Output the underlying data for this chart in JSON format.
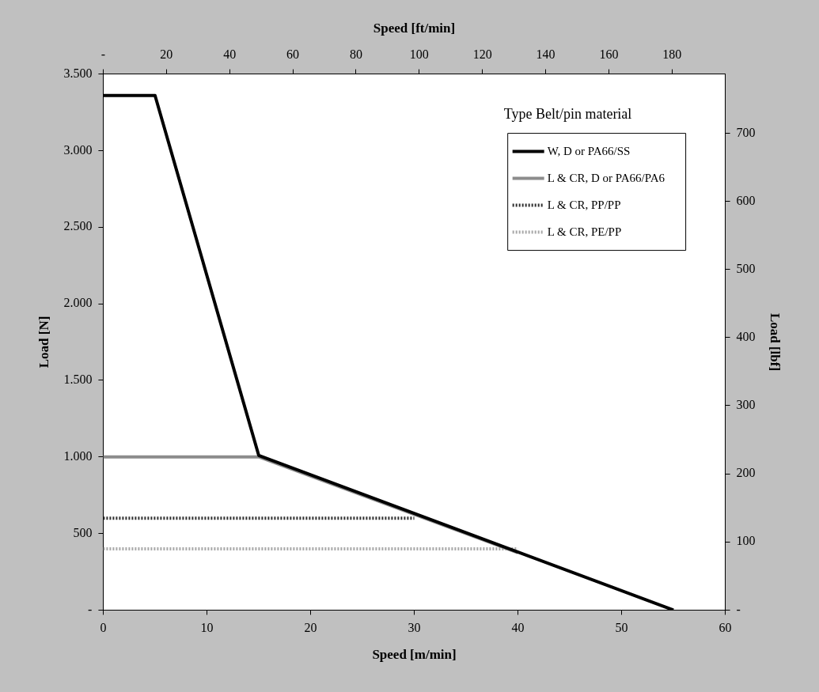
{
  "chart_data": {
    "type": "line",
    "xlabel": "Speed [m/min]",
    "x2label": "Speed [ft/min]",
    "ylabel": "Load [N]",
    "y2label": "Load [lbf]",
    "legend_title": "Type Belt/pin material",
    "legend": "top right",
    "grid": false,
    "marker": "none",
    "xlim": [
      0,
      60
    ],
    "xticks": [
      0,
      10,
      20,
      30,
      40,
      50,
      60
    ],
    "x2lim": [
      0,
      196.85
    ],
    "x2ticks": [
      {
        "value": 0,
        "label": "-"
      },
      20,
      40,
      60,
      80,
      100,
      120,
      140,
      160,
      180
    ],
    "ylim": [
      0,
      3500
    ],
    "yticks": [
      {
        "value": 0,
        "label": "-"
      },
      {
        "value": 500,
        "label": "500"
      },
      {
        "value": 1000,
        "label": "1.000"
      },
      {
        "value": 1500,
        "label": "1.500"
      },
      {
        "value": 2000,
        "label": "2.000"
      },
      {
        "value": 2500,
        "label": "2.500"
      },
      {
        "value": 3000,
        "label": "3.000"
      },
      {
        "value": 3500,
        "label": "3.500"
      }
    ],
    "y2lim": [
      0,
      786.8
    ],
    "y2ticks": [
      {
        "value": 0,
        "label": "-"
      },
      100,
      200,
      300,
      400,
      500,
      600,
      700
    ],
    "series": [
      {
        "name": "W, D or PA66/SS",
        "color": "#000000",
        "line_style": "solid",
        "x": [
          0,
          5,
          15,
          55
        ],
        "values": [
          3360,
          3360,
          1010,
          0
        ]
      },
      {
        "name": "L & CR, D or PA66/PA6",
        "color": "#8c8c8c",
        "line_style": "solid",
        "x": [
          0,
          15,
          40
        ],
        "values": [
          1000,
          1000,
          375
        ]
      },
      {
        "name": "L & CR, PP/PP",
        "color": "#303030",
        "line_style": "dotted",
        "x": [
          0,
          30
        ],
        "values": [
          600,
          600
        ]
      },
      {
        "name": "L & CR, PE/PP",
        "color": "#a8a8a8",
        "line_style": "dotted",
        "x": [
          0,
          40
        ],
        "values": [
          400,
          400
        ]
      }
    ]
  }
}
